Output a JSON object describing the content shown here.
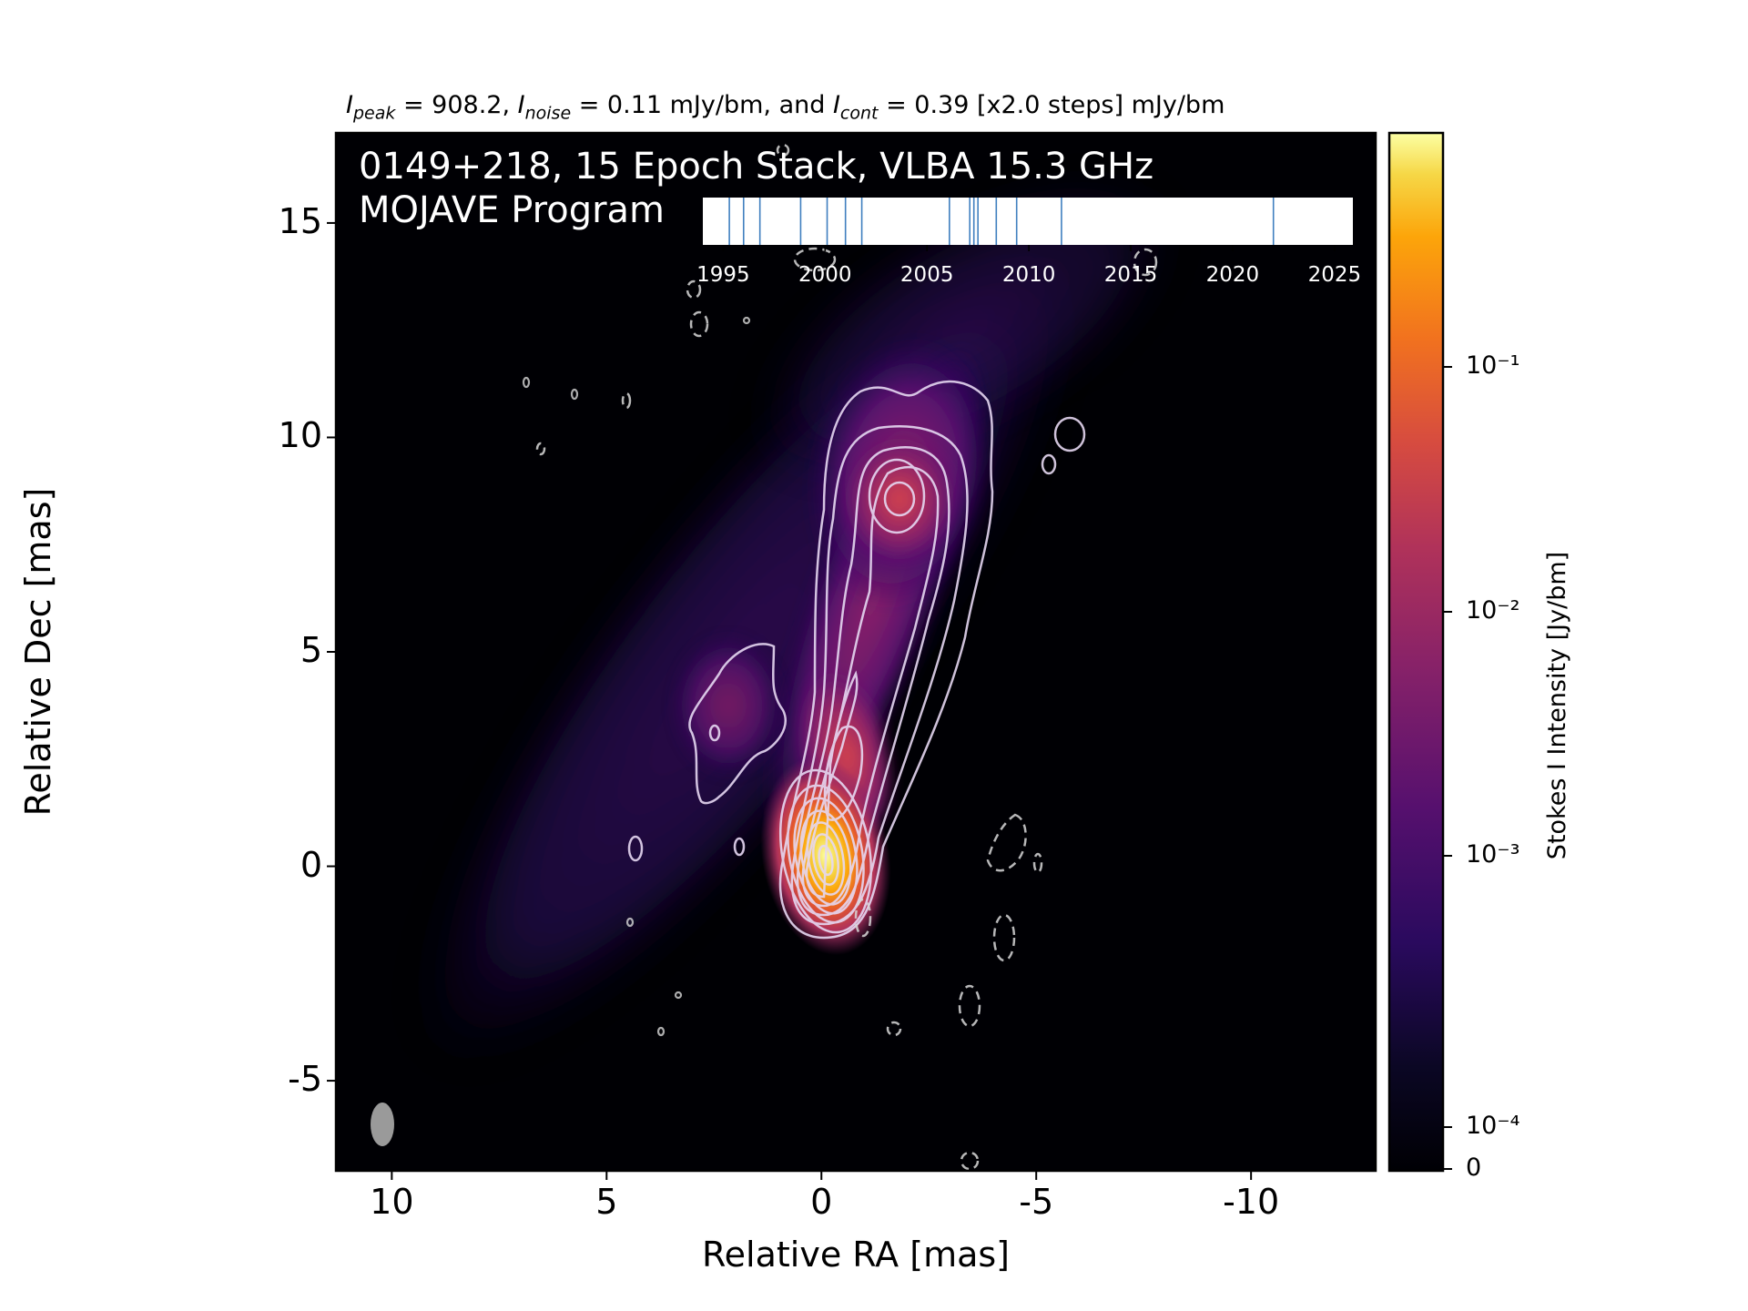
{
  "header": {
    "peak_label": "I",
    "peak_sub": "peak",
    "peak_text": " = 908.2, ",
    "noise_label": "I",
    "noise_sub": "noise",
    "noise_text": " = 0.11 mJy/bm, and ",
    "cont_label": "I",
    "cont_sub": "cont",
    "cont_text": " = 0.39 [x2.0 steps] mJy/bm"
  },
  "overlay": {
    "line1": "0149+218, 15 Epoch Stack, VLBA 15.3 GHz",
    "line2": "MOJAVE Program"
  },
  "colors": {
    "background": "#000000",
    "contour": "#e6d8f2",
    "beam": "#9a9a9a",
    "epoch_marker": "#3f7fbf"
  },
  "chart_data": {
    "type": "heatmap",
    "colormap": "inferno",
    "log_scale": true,
    "xlabel": "Relative RA [mas]",
    "ylabel": "Relative Dec [mas]",
    "xlim": [
      11.3,
      -12.9
    ],
    "ylim": [
      -7.1,
      17.1
    ],
    "x_ticks": [
      10,
      5,
      0,
      -5,
      -10
    ],
    "x_tick_labels": [
      "10",
      "5",
      "0",
      "-5",
      "-10"
    ],
    "y_ticks": [
      15,
      10,
      5,
      0,
      -5
    ],
    "y_tick_labels": [
      "15",
      "10",
      "5",
      "0",
      "-5"
    ],
    "colorbar": {
      "label": "Stokes I Intensity [Jy/bm]",
      "ticks": [
        {
          "value": 0.1,
          "label": "10⁻¹"
        },
        {
          "value": 0.01,
          "label": "10⁻²"
        },
        {
          "value": 0.001,
          "label": "10⁻³"
        },
        {
          "value": 0.0001,
          "label": "10⁻⁴"
        },
        {
          "value": 0,
          "label": "0"
        }
      ]
    },
    "components": [
      {
        "ra": 0.0,
        "dec": 0.0,
        "peak": 0.908
      },
      {
        "ra": -0.6,
        "dec": 2.5,
        "peak": 0.02
      },
      {
        "ra": -1.8,
        "dec": 8.4,
        "peak": 0.012
      },
      {
        "ra": 2.0,
        "dec": 3.5,
        "peak": 0.0015
      }
    ],
    "beam": {
      "ra": 10.2,
      "dec": -6.2
    },
    "epoch_timeline": {
      "x_ticks": [
        1995,
        2000,
        2005,
        2010,
        2015,
        2020,
        2025
      ],
      "x_tick_labels": [
        "1995",
        "2000",
        "2005",
        "2010",
        "2015",
        "2020",
        "2025"
      ],
      "xlim": [
        1994.0,
        2025.9
      ],
      "epochs": [
        1995.3,
        1996.0,
        1996.8,
        1998.8,
        2000.1,
        2001.0,
        2001.8,
        2006.1,
        2007.1,
        2007.3,
        2007.5,
        2008.4,
        2009.4,
        2011.6,
        2022.0
      ]
    }
  }
}
